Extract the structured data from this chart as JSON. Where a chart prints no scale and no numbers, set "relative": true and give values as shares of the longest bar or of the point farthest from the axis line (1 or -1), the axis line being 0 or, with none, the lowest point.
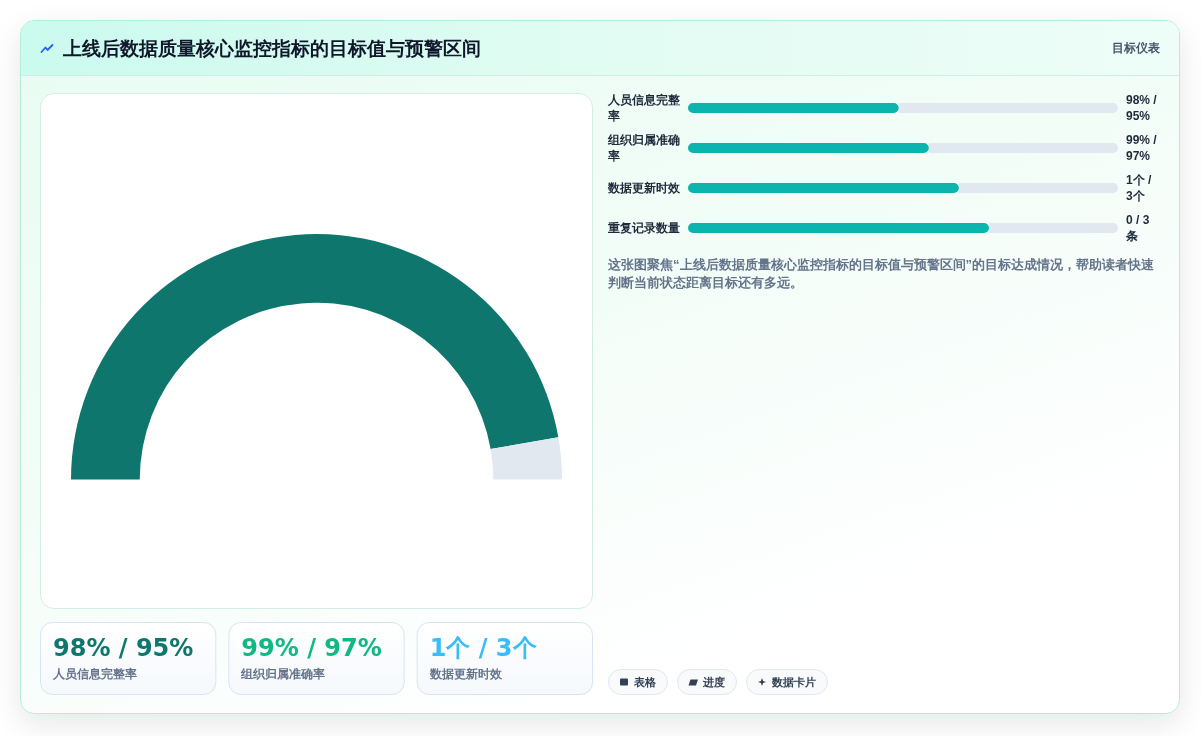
{
  "chart_data": [
    {
      "type": "donut",
      "title": "上线后数据质量核心监控指标的目标值与预警区间",
      "categories": [
        null,
        null
      ],
      "values": [
        94.5,
        5.5
      ],
      "colors": [
        "#0f766e",
        "#e2e8f0"
      ]
    },
    {
      "type": "bar",
      "subtitle": "目标仪表",
      "orientation": "horizontal",
      "stacked": true,
      "relative": true,
      "categories": [
        "人员信息完整率",
        "组织归属准确率",
        "数据更新时效",
        "重复记录数量"
      ],
      "series": [
        {
          "color": "#0bb5ad",
          "values": [
            0.49,
            0.56,
            0.63,
            0.7
          ]
        },
        {
          "color": "#e2e8f0",
          "values": [
            0.51,
            0.44,
            0.37,
            0.3
          ]
        }
      ],
      "annotations": [
        "98% / 95%",
        "99% / 97%",
        "1个 / 3个",
        "0 / 3 条",
        "这张图聚焦“上线后数据质量核心监控指标的目标值与预警区间”的目标达成情况，帮助读者快速判断当前状态距离目标还有多远。",
        "表格",
        "进度",
        "数据卡片"
      ]
    },
    {
      "type": "other",
      "categories": [
        "人员信息完整率",
        "组织归属准确率",
        "数据更新时效"
      ],
      "value_labels": [
        "98% / 95%",
        "99% / 97%",
        "1个 / 3个"
      ],
      "colors": [
        "#0f766e",
        "#10b981",
        "#38bdf8"
      ]
    }
  ]
}
